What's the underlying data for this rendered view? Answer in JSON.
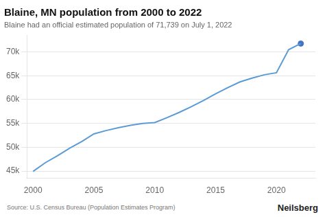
{
  "chart_data": {
    "type": "line",
    "title": "Blaine, MN population from 2000 to 2022",
    "subtitle": "Blaine had an official estimated population of 71,739 on July 1, 2022",
    "annotations": [
      "Source: U.S. Census Bureau (Population Estimates Program)",
      "Neilsberg"
    ],
    "x": [
      2000,
      2001,
      2002,
      2003,
      2004,
      2005,
      2006,
      2007,
      2008,
      2009,
      2010,
      2011,
      2012,
      2013,
      2014,
      2015,
      2016,
      2017,
      2018,
      2019,
      2020,
      2021,
      2022
    ],
    "series": [
      {
        "color": "#5b9bd5",
        "values": [
          44942,
          46753,
          48200,
          49800,
          51200,
          52800,
          53500,
          54100,
          54600,
          55000,
          55173,
          56200,
          57300,
          58500,
          59800,
          61200,
          62500,
          63700,
          64500,
          65200,
          65626,
          70456,
          71739
        ]
      },
      {
        "type": "scatter",
        "color": "#4472c4",
        "marker": "circle",
        "values": [
          null,
          null,
          null,
          null,
          null,
          null,
          null,
          null,
          null,
          null,
          null,
          null,
          null,
          null,
          null,
          null,
          null,
          null,
          null,
          null,
          null,
          null,
          71739
        ]
      }
    ],
    "xlim": [
      1999.5,
      2023.2
    ],
    "ylim": [
      43500,
      73500
    ],
    "xticks": [
      2000,
      2005,
      2010,
      2015,
      2020
    ],
    "yticks": [
      {
        "value": 45000,
        "label": "45k"
      },
      {
        "value": 50000,
        "label": "50k"
      },
      {
        "value": 55000,
        "label": "55k"
      },
      {
        "value": 60000,
        "label": "60k"
      },
      {
        "value": 65000,
        "label": "65k"
      },
      {
        "value": 70000,
        "label": "70k"
      }
    ],
    "grid": true
  }
}
